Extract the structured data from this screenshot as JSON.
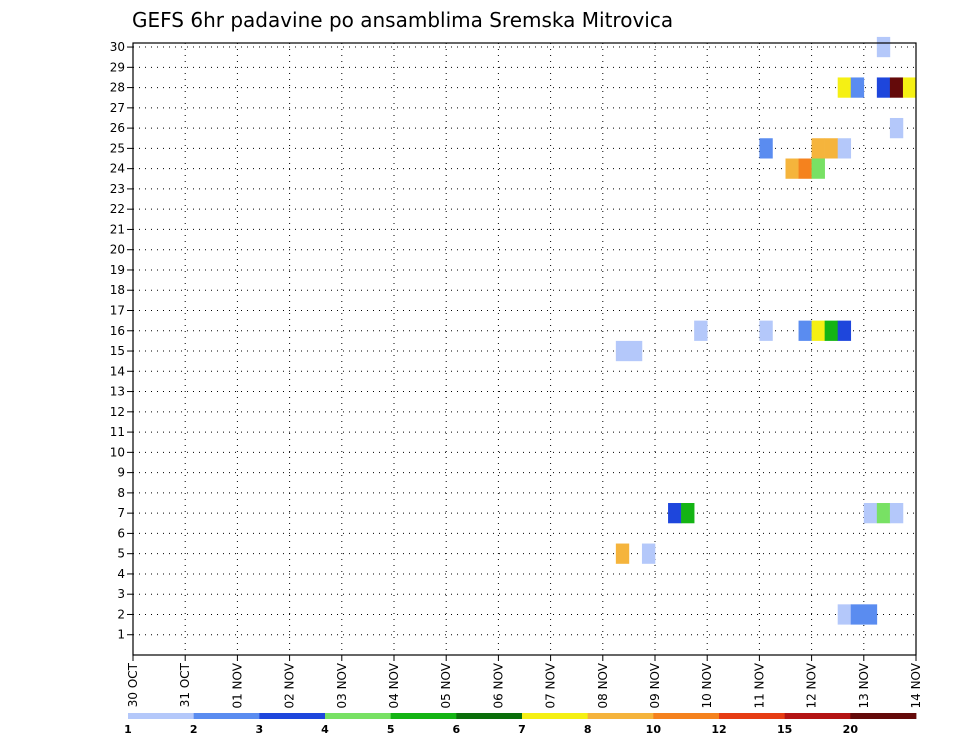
{
  "chart_data": {
    "type": "heatmap",
    "title": "GEFS 6hr padavine po ansamblima Sremska Mitrovica",
    "xlabel": "",
    "ylabel": "",
    "x_ticks": [
      "30 OCT",
      "31 OCT",
      "01 NOV",
      "02 NOV",
      "03 NOV",
      "04 NOV",
      "05 NOV",
      "06 NOV",
      "07 NOV",
      "08 NOV",
      "09 NOV",
      "10 NOV",
      "11 NOV",
      "12 NOV",
      "13 NOV",
      "14 NOV"
    ],
    "x_range_days": [
      0,
      15
    ],
    "y_ticks": [
      "1",
      "2",
      "3",
      "4",
      "5",
      "6",
      "7",
      "8",
      "9",
      "10",
      "11",
      "12",
      "13",
      "14",
      "15",
      "16",
      "17",
      "18",
      "19",
      "20",
      "21",
      "22",
      "23",
      "24",
      "25",
      "26",
      "27",
      "28",
      "29",
      "30"
    ],
    "y_range": [
      0,
      30
    ],
    "grid": true,
    "colorbar": {
      "labels": [
        "1",
        "2",
        "3",
        "4",
        "5",
        "6",
        "7",
        "8",
        "10",
        "12",
        "15",
        "20"
      ],
      "colors": [
        "#b4c8fa",
        "#5a8cf0",
        "#1e46dc",
        "#78e164",
        "#14b414",
        "#0a6e0a",
        "#f5f014",
        "#f5b43c",
        "#f5821e",
        "#e63c14",
        "#b41414",
        "#640a0a"
      ]
    },
    "cells": [
      {
        "member": 30,
        "start": 14.25,
        "value": 1.5
      },
      {
        "member": 28,
        "start": 13.5,
        "value": 7
      },
      {
        "member": 28,
        "start": 13.75,
        "value": 2.5
      },
      {
        "member": 28,
        "start": 14.25,
        "value": 3.5
      },
      {
        "member": 28,
        "start": 14.5,
        "value": 22
      },
      {
        "member": 28,
        "start": 14.75,
        "value": 7
      },
      {
        "member": 26,
        "start": 14.5,
        "value": 1.5
      },
      {
        "member": 25,
        "start": 12.0,
        "value": 2.5
      },
      {
        "member": 25,
        "start": 13.0,
        "value": 9
      },
      {
        "member": 25,
        "start": 13.25,
        "value": 9
      },
      {
        "member": 25,
        "start": 13.5,
        "value": 1.5
      },
      {
        "member": 24,
        "start": 12.5,
        "value": 8
      },
      {
        "member": 24,
        "start": 12.75,
        "value": 11
      },
      {
        "member": 24,
        "start": 13.0,
        "value": 4.5
      },
      {
        "member": 16,
        "start": 10.75,
        "value": 1.5
      },
      {
        "member": 16,
        "start": 12.0,
        "value": 1.5
      },
      {
        "member": 16,
        "start": 12.75,
        "value": 2.5
      },
      {
        "member": 16,
        "start": 13.0,
        "value": 7
      },
      {
        "member": 16,
        "start": 13.25,
        "value": 5.5
      },
      {
        "member": 16,
        "start": 13.5,
        "value": 3.5
      },
      {
        "member": 15,
        "start": 9.25,
        "value": 1.5
      },
      {
        "member": 15,
        "start": 9.5,
        "value": 1.5
      },
      {
        "member": 7,
        "start": 10.25,
        "value": 3.5
      },
      {
        "member": 7,
        "start": 10.5,
        "value": 5.5
      },
      {
        "member": 7,
        "start": 14.0,
        "value": 1.5
      },
      {
        "member": 7,
        "start": 14.25,
        "value": 4.5
      },
      {
        "member": 7,
        "start": 14.5,
        "value": 1.5
      },
      {
        "member": 5,
        "start": 9.25,
        "value": 8
      },
      {
        "member": 5,
        "start": 9.75,
        "value": 1.5
      },
      {
        "member": 2,
        "start": 13.5,
        "value": 1.5
      },
      {
        "member": 2,
        "start": 13.75,
        "value": 2.5
      },
      {
        "member": 2,
        "start": 14.0,
        "value": 2.5
      }
    ]
  }
}
